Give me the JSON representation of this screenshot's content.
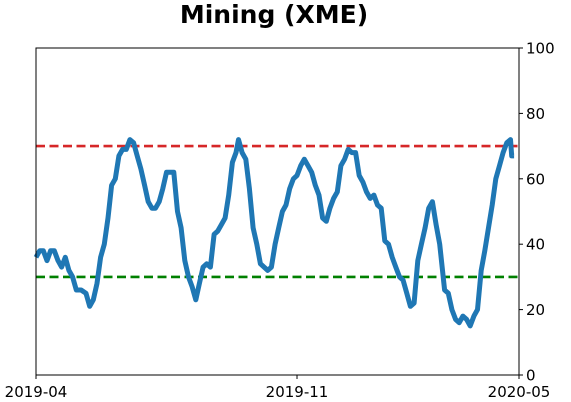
{
  "chart_data": {
    "type": "line",
    "title": "Mining (XME)",
    "xlabel": "",
    "ylabel": "",
    "ylim": [
      0,
      100
    ],
    "y_axis_side": "right",
    "y_ticks": [
      0,
      20,
      40,
      60,
      80,
      100
    ],
    "x_range": [
      "2019-04-01",
      "2020-05-01"
    ],
    "x_tick_labels": [
      {
        "date": "2019-04-01",
        "label": "2019-04"
      },
      {
        "date": "2019-11-01",
        "label": "2019-11"
      },
      {
        "date": "2020-05-01",
        "label": "2020-05"
      }
    ],
    "grid": false,
    "reference_lines": [
      {
        "y": 70,
        "color": "#d62728",
        "style": "dashed"
      },
      {
        "y": 30,
        "color": "#008000",
        "style": "dashed"
      }
    ],
    "series": [
      {
        "color": "#1f77b4",
        "points": [
          [
            "2019-04-01",
            36
          ],
          [
            "2019-04-04",
            38
          ],
          [
            "2019-04-07",
            38
          ],
          [
            "2019-04-10",
            35
          ],
          [
            "2019-04-13",
            38
          ],
          [
            "2019-04-16",
            38
          ],
          [
            "2019-04-19",
            35
          ],
          [
            "2019-04-22",
            33
          ],
          [
            "2019-04-25",
            36
          ],
          [
            "2019-04-28",
            32
          ],
          [
            "2019-05-01",
            30
          ],
          [
            "2019-05-04",
            26
          ],
          [
            "2019-05-08",
            26
          ],
          [
            "2019-05-12",
            25
          ],
          [
            "2019-05-15",
            21
          ],
          [
            "2019-05-18",
            23
          ],
          [
            "2019-05-21",
            28
          ],
          [
            "2019-05-24",
            36
          ],
          [
            "2019-05-27",
            40
          ],
          [
            "2019-05-30",
            48
          ],
          [
            "2019-06-02",
            58
          ],
          [
            "2019-06-05",
            60
          ],
          [
            "2019-06-08",
            67
          ],
          [
            "2019-06-11",
            69
          ],
          [
            "2019-06-14",
            69
          ],
          [
            "2019-06-17",
            72
          ],
          [
            "2019-06-20",
            71
          ],
          [
            "2019-06-23",
            67
          ],
          [
            "2019-06-26",
            63
          ],
          [
            "2019-06-29",
            58
          ],
          [
            "2019-07-02",
            53
          ],
          [
            "2019-07-05",
            51
          ],
          [
            "2019-07-08",
            51
          ],
          [
            "2019-07-11",
            53
          ],
          [
            "2019-07-14",
            57
          ],
          [
            "2019-07-17",
            62
          ],
          [
            "2019-07-20",
            62
          ],
          [
            "2019-07-23",
            62
          ],
          [
            "2019-07-26",
            50
          ],
          [
            "2019-07-29",
            45
          ],
          [
            "2019-08-01",
            35
          ],
          [
            "2019-08-04",
            30
          ],
          [
            "2019-08-07",
            27
          ],
          [
            "2019-08-10",
            23
          ],
          [
            "2019-08-13",
            28
          ],
          [
            "2019-08-16",
            33
          ],
          [
            "2019-08-19",
            34
          ],
          [
            "2019-08-22",
            33
          ],
          [
            "2019-08-25",
            43
          ],
          [
            "2019-08-28",
            44
          ],
          [
            "2019-08-31",
            46
          ],
          [
            "2019-09-03",
            48
          ],
          [
            "2019-09-06",
            55
          ],
          [
            "2019-09-09",
            65
          ],
          [
            "2019-09-12",
            68
          ],
          [
            "2019-09-14",
            72
          ],
          [
            "2019-09-17",
            68
          ],
          [
            "2019-09-20",
            66
          ],
          [
            "2019-09-23",
            57
          ],
          [
            "2019-09-26",
            45
          ],
          [
            "2019-09-29",
            40
          ],
          [
            "2019-10-02",
            34
          ],
          [
            "2019-10-05",
            33
          ],
          [
            "2019-10-08",
            32
          ],
          [
            "2019-10-11",
            33
          ],
          [
            "2019-10-14",
            40
          ],
          [
            "2019-10-17",
            45
          ],
          [
            "2019-10-20",
            50
          ],
          [
            "2019-10-23",
            52
          ],
          [
            "2019-10-26",
            57
          ],
          [
            "2019-10-29",
            60
          ],
          [
            "2019-11-01",
            61
          ],
          [
            "2019-11-04",
            64
          ],
          [
            "2019-11-07",
            66
          ],
          [
            "2019-11-10",
            64
          ],
          [
            "2019-11-13",
            62
          ],
          [
            "2019-11-16",
            58
          ],
          [
            "2019-11-19",
            55
          ],
          [
            "2019-11-22",
            48
          ],
          [
            "2019-11-25",
            47
          ],
          [
            "2019-11-28",
            51
          ],
          [
            "2019-12-01",
            54
          ],
          [
            "2019-12-04",
            56
          ],
          [
            "2019-12-07",
            64
          ],
          [
            "2019-12-10",
            66
          ],
          [
            "2019-12-13",
            69
          ],
          [
            "2019-12-16",
            68
          ],
          [
            "2019-12-19",
            68
          ],
          [
            "2019-12-22",
            61
          ],
          [
            "2019-12-25",
            59
          ],
          [
            "2019-12-28",
            56
          ],
          [
            "2019-12-31",
            54
          ],
          [
            "2020-01-03",
            55
          ],
          [
            "2020-01-06",
            52
          ],
          [
            "2020-01-09",
            51
          ],
          [
            "2020-01-12",
            41
          ],
          [
            "2020-01-15",
            40
          ],
          [
            "2020-01-18",
            36
          ],
          [
            "2020-01-21",
            33
          ],
          [
            "2020-01-24",
            30
          ],
          [
            "2020-01-27",
            29
          ],
          [
            "2020-01-30",
            25
          ],
          [
            "2020-02-02",
            21
          ],
          [
            "2020-02-05",
            22
          ],
          [
            "2020-02-08",
            35
          ],
          [
            "2020-02-11",
            40
          ],
          [
            "2020-02-14",
            45
          ],
          [
            "2020-02-17",
            51
          ],
          [
            "2020-02-20",
            53
          ],
          [
            "2020-02-23",
            46
          ],
          [
            "2020-02-26",
            40
          ],
          [
            "2020-03-01",
            26
          ],
          [
            "2020-03-04",
            25
          ],
          [
            "2020-03-07",
            20
          ],
          [
            "2020-03-10",
            17
          ],
          [
            "2020-03-13",
            16
          ],
          [
            "2020-03-16",
            18
          ],
          [
            "2020-03-19",
            17
          ],
          [
            "2020-03-22",
            15
          ],
          [
            "2020-03-25",
            18
          ],
          [
            "2020-03-28",
            20
          ],
          [
            "2020-03-31",
            32
          ],
          [
            "2020-04-03",
            38
          ],
          [
            "2020-04-06",
            45
          ],
          [
            "2020-04-09",
            52
          ],
          [
            "2020-04-12",
            60
          ],
          [
            "2020-04-15",
            64
          ],
          [
            "2020-04-18",
            68
          ],
          [
            "2020-04-21",
            71
          ],
          [
            "2020-04-24",
            72
          ],
          [
            "2020-04-25",
            67
          ],
          [
            "2020-04-27",
            67
          ]
        ]
      }
    ]
  }
}
